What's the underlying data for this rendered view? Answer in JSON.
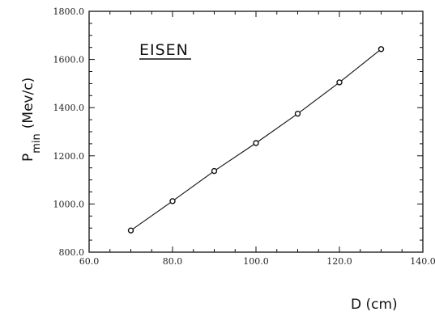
{
  "chart_data": {
    "type": "line",
    "annotation": "EISEN",
    "xlabel": "D (cm)",
    "ylabel_main": "P",
    "ylabel_sub": "min",
    "ylabel_unit": "(Mev/c)",
    "xlim": [
      60,
      140
    ],
    "ylim": [
      800,
      1800
    ],
    "x_ticks": [
      60,
      80,
      100,
      120,
      140
    ],
    "x_tick_labels": [
      "60.0",
      "80.0",
      "100.0",
      "120.0",
      "140.0"
    ],
    "y_ticks": [
      800,
      1000,
      1200,
      1400,
      1600,
      1800
    ],
    "y_tick_labels": [
      "800.0",
      "1000.0",
      "1200.0",
      "1400.0",
      "1600.0",
      "1800.0"
    ],
    "grid": false,
    "series": [
      {
        "x": [
          70,
          80,
          90,
          100,
          110,
          120,
          130
        ],
        "y": [
          890,
          1012,
          1137,
          1253,
          1375,
          1505,
          1643
        ]
      }
    ],
    "colors": {
      "ink": "#111111"
    }
  }
}
